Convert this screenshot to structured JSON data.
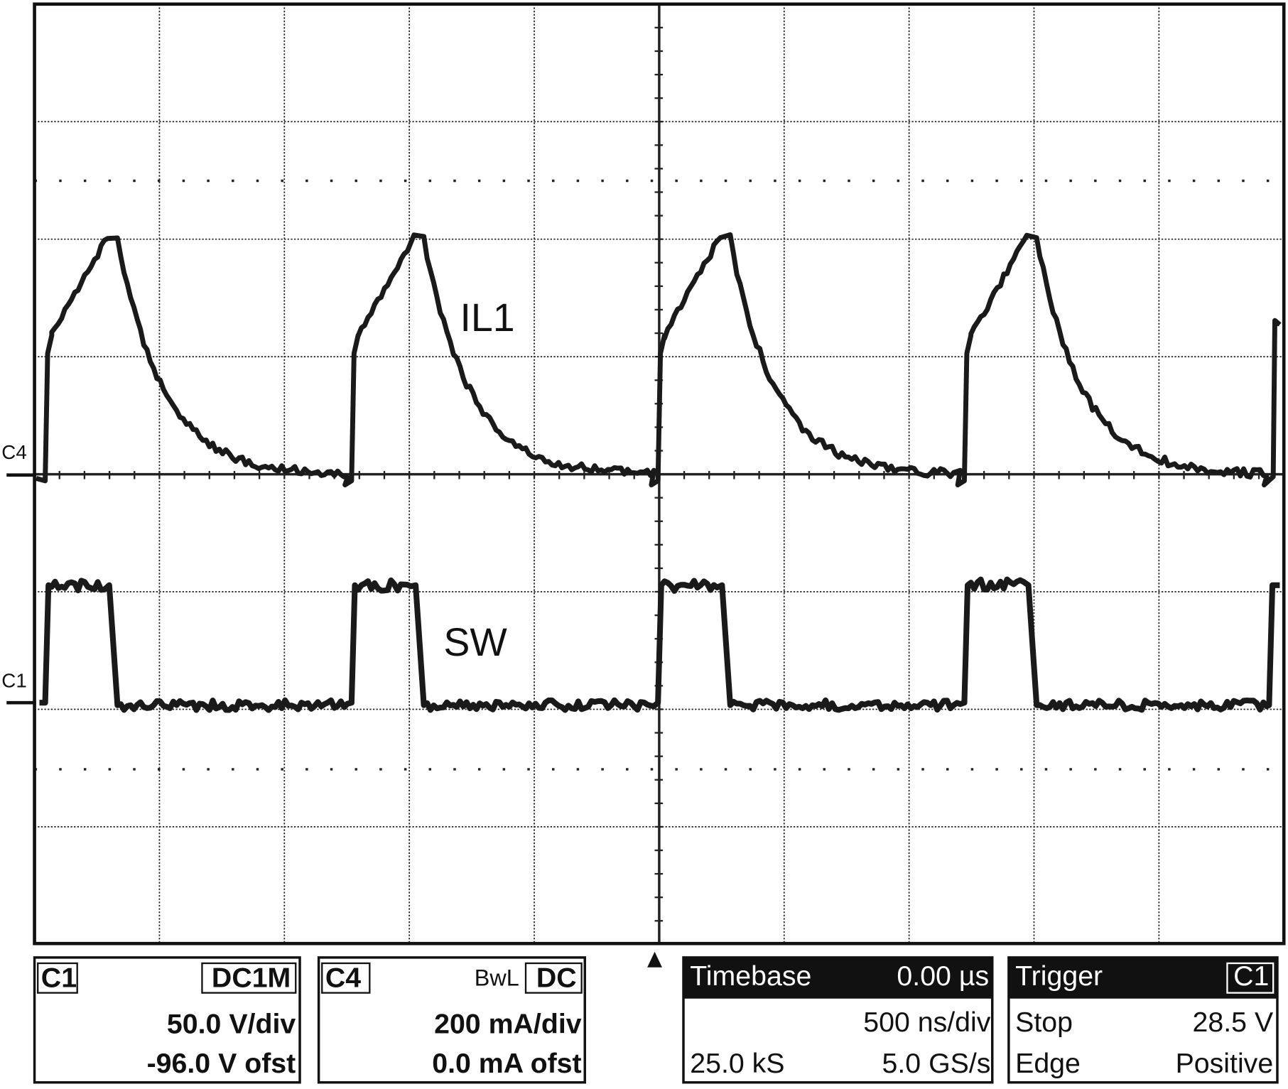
{
  "screen": {
    "trace_labels": [
      "IL1",
      "SW"
    ],
    "channel_markers": [
      "C4",
      "C1"
    ]
  },
  "channels": [
    {
      "name": "C1",
      "coupling": "DC1M",
      "scale": "50.0 V/div",
      "offset": "-96.0 V ofst"
    },
    {
      "name": "C4",
      "bandwidth": "BwL",
      "coupling": "DC",
      "scale": "200 mA/div",
      "offset": "0.0 mA ofst"
    }
  ],
  "timebase": {
    "title": "Timebase",
    "delay": "0.00 µs",
    "scale": "500 ns/div",
    "samples": "25.0 kS",
    "rate": "5.0 GS/s"
  },
  "trigger": {
    "title": "Trigger",
    "source": "C1",
    "mode": "Stop",
    "level": "28.5 V",
    "type": "Edge",
    "slope": "Positive"
  }
}
